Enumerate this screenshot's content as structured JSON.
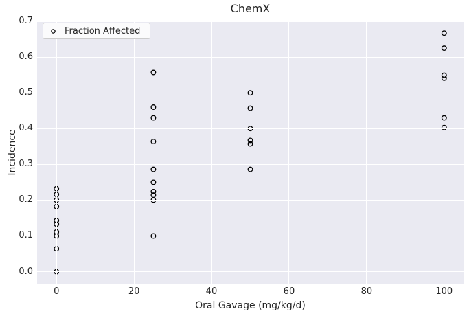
{
  "chart_data": {
    "type": "scatter",
    "title": "ChemX",
    "xlabel": "Oral Gavage (mg/kg/d)",
    "ylabel": "Incidence",
    "legend": {
      "label": "Fraction Affected",
      "position": "upper-left",
      "marker": "open-circle"
    },
    "grid": true,
    "xlim": [
      -5,
      105
    ],
    "ylim": [
      -0.0335,
      0.7
    ],
    "xticks": [
      0,
      20,
      40,
      60,
      80,
      100
    ],
    "yticks": [
      0.0,
      0.1,
      0.2,
      0.3,
      0.4,
      0.5,
      0.6,
      0.7
    ],
    "series": [
      {
        "name": "Fraction Affected",
        "marker": "open-circle",
        "points": [
          [
            0,
            0.0
          ],
          [
            0,
            0.064
          ],
          [
            0,
            0.1
          ],
          [
            0,
            0.111
          ],
          [
            0,
            0.133
          ],
          [
            0,
            0.143
          ],
          [
            0,
            0.182
          ],
          [
            0,
            0.2
          ],
          [
            0,
            0.216
          ],
          [
            0,
            0.232
          ],
          [
            25,
            0.1
          ],
          [
            25,
            0.2
          ],
          [
            25,
            0.214
          ],
          [
            25,
            0.224
          ],
          [
            25,
            0.25
          ],
          [
            25,
            0.286
          ],
          [
            25,
            0.364
          ],
          [
            25,
            0.43
          ],
          [
            25,
            0.46
          ],
          [
            25,
            0.557
          ],
          [
            50,
            0.286
          ],
          [
            50,
            0.357
          ],
          [
            50,
            0.367
          ],
          [
            50,
            0.4
          ],
          [
            50,
            0.457
          ],
          [
            50,
            0.5
          ],
          [
            100,
            0.403
          ],
          [
            100,
            0.43
          ],
          [
            100,
            0.541
          ],
          [
            100,
            0.549
          ],
          [
            100,
            0.625
          ],
          [
            100,
            0.667
          ]
        ]
      }
    ],
    "colors": {
      "figure_bg": "#ffffff",
      "axes_bg": "#eaeaf2",
      "grid": "#ffffff",
      "marker_edge": "#000000",
      "text": "#262626",
      "legend_bg": "#fbfbfc",
      "legend_border": "#cccccc"
    }
  }
}
